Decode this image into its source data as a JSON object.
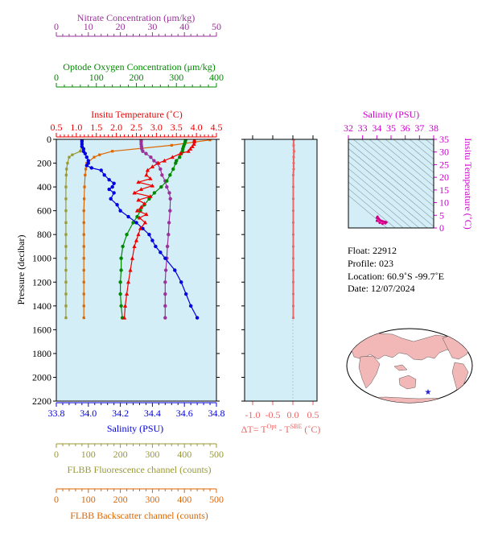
{
  "colors": {
    "plot_bg": "#d4eef7",
    "salinity": "#0000dd",
    "temperature": "#ee0000",
    "oxygen": "#008800",
    "nitrate": "#993399",
    "fluorescence": "#999933",
    "backscatter": "#dd6600",
    "delta_t": "#ee6666",
    "ts_salinity": "#cc00cc",
    "ts_marker": "#ff33aa",
    "map_land": "#f2b8b8",
    "map_ocean": "#ffffff",
    "map_marker": "#2222cc"
  },
  "info": {
    "float": "Float:  22912",
    "profile": "Profile:  023",
    "location": "Location:  60.9˚S  -99.7˚E",
    "date": "Date:  12/07/2024"
  },
  "chart_data": [
    {
      "type": "line",
      "panel": "main profile",
      "ylabel": "Pressure (decibar)",
      "yaxis_inverted": true,
      "ylim": [
        0,
        2200
      ],
      "ytick_labels": [
        "0",
        "200",
        "400",
        "600",
        "800",
        "1000",
        "1200",
        "1400",
        "1600",
        "1800",
        "2000",
        "2200"
      ],
      "axes": {
        "nitrate": {
          "label": "Nitrate Concentration (μm/kg)",
          "lim": [
            0,
            50
          ],
          "tick_labels": [
            "0",
            "10",
            "20",
            "30",
            "40",
            "50"
          ]
        },
        "oxygen": {
          "label": "Optode Oxygen Concentration (μm/kg)",
          "lim": [
            0,
            400
          ],
          "tick_labels": [
            "0",
            "100",
            "200",
            "300",
            "400"
          ]
        },
        "temperature": {
          "label": "Insitu Temperature (˚C)",
          "lim": [
            0.5,
            4.5
          ],
          "tick_labels": [
            "0.5",
            "1.0",
            "1.5",
            "2.0",
            "2.5",
            "3.0",
            "3.5",
            "4.0",
            "4.5"
          ]
        },
        "salinity": {
          "label": "Salinity (PSU)",
          "lim": [
            33.8,
            34.8
          ],
          "tick_labels": [
            "33.8",
            "34.0",
            "34.2",
            "34.4",
            "34.6",
            "34.8"
          ]
        },
        "fluorescence": {
          "label": "FLBB Fluorescence channel (counts)",
          "lim": [
            0,
            500
          ],
          "tick_labels": [
            "0",
            "100",
            "200",
            "300",
            "400",
            "500"
          ]
        },
        "backscatter": {
          "label": "FLBB Backscatter channel (counts)",
          "lim": [
            0,
            500
          ],
          "tick_labels": [
            "0",
            "100",
            "200",
            "300",
            "400",
            "500"
          ]
        }
      },
      "series": [
        {
          "key": "salinity",
          "pressure": [
            5,
            20,
            40,
            60,
            80,
            100,
            120,
            150,
            180,
            200,
            220,
            240,
            260,
            300,
            340,
            370,
            400,
            420,
            450,
            500,
            550,
            600,
            650,
            700,
            750,
            800,
            850,
            900,
            950,
            1000,
            1100,
            1200,
            1300,
            1400,
            1500
          ],
          "values": [
            33.96,
            33.96,
            33.96,
            33.96,
            33.97,
            33.97,
            33.98,
            33.99,
            34.0,
            34.0,
            33.99,
            34.02,
            34.08,
            34.1,
            34.13,
            34.16,
            34.15,
            34.13,
            34.16,
            34.14,
            34.18,
            34.2,
            34.25,
            34.3,
            34.34,
            34.38,
            34.4,
            34.42,
            34.45,
            34.48,
            34.54,
            34.58,
            34.61,
            34.64,
            34.68
          ]
        },
        {
          "key": "temperature",
          "pressure": [
            5,
            20,
            40,
            60,
            80,
            100,
            120,
            150,
            180,
            200,
            230,
            260,
            300,
            330,
            360,
            390,
            420,
            450,
            480,
            510,
            540,
            570,
            600,
            630,
            660,
            700,
            750,
            800,
            850,
            900,
            1000,
            1100,
            1200,
            1300,
            1400,
            1500
          ],
          "values": [
            3.95,
            3.95,
            3.94,
            3.9,
            3.85,
            3.8,
            3.6,
            3.4,
            3.2,
            3.05,
            2.9,
            2.78,
            2.75,
            2.85,
            2.55,
            2.9,
            2.62,
            2.45,
            2.85,
            2.55,
            2.7,
            2.62,
            2.52,
            2.75,
            2.58,
            2.72,
            2.6,
            2.55,
            2.5,
            2.45,
            2.4,
            2.35,
            2.3,
            2.26,
            2.22,
            2.2
          ]
        },
        {
          "key": "oxygen",
          "pressure": [
            5,
            20,
            40,
            60,
            80,
            100,
            120,
            150,
            180,
            200,
            250,
            300,
            350,
            400,
            450,
            500,
            550,
            600,
            650,
            700,
            800,
            900,
            1000,
            1100,
            1200,
            1300,
            1400,
            1500
          ],
          "values": [
            323,
            322,
            320,
            318,
            316,
            315,
            312,
            308,
            300,
            298,
            292,
            284,
            276,
            262,
            245,
            232,
            220,
            210,
            202,
            192,
            176,
            166,
            162,
            162,
            160,
            160,
            162,
            165
          ]
        },
        {
          "key": "nitrate",
          "pressure": [
            5,
            20,
            40,
            60,
            80,
            100,
            120,
            150,
            180,
            200,
            250,
            300,
            350,
            400,
            450,
            500,
            600,
            700,
            800,
            900,
            1000,
            1100,
            1200,
            1300,
            1400,
            1500
          ],
          "values": [
            26.5,
            26.5,
            26.5,
            26.6,
            26.7,
            27,
            28,
            29.5,
            30.5,
            31.5,
            32.5,
            33,
            34,
            34.5,
            35.3,
            35.6,
            35.5,
            35.2,
            35,
            34.7,
            34.5,
            34.2,
            34,
            34,
            34,
            34
          ]
        },
        {
          "key": "fluorescence",
          "pressure": [
            5,
            50,
            100,
            130,
            150,
            200,
            250,
            300,
            400,
            500,
            600,
            700,
            800,
            900,
            1000,
            1100,
            1200,
            1300,
            1400,
            1500
          ],
          "values": [
            80,
            80,
            75,
            50,
            40,
            35,
            32,
            31,
            30,
            30,
            30,
            30,
            30,
            30,
            30,
            30,
            30,
            30,
            30,
            30
          ]
        },
        {
          "key": "backscatter",
          "pressure": [
            5,
            50,
            100,
            130,
            150,
            200,
            250,
            300,
            400,
            500,
            600,
            700,
            800,
            900,
            1000,
            1100,
            1200,
            1300,
            1400,
            1500
          ],
          "values": [
            480,
            360,
            175,
            135,
            118,
            95,
            92,
            90,
            88,
            87,
            86,
            86,
            86,
            86,
            86,
            86,
            86,
            86,
            86,
            86
          ]
        }
      ]
    },
    {
      "type": "line",
      "panel": "temperature difference",
      "xlabel": "ΔT= T",
      "xlabel_sup1": "Opt",
      "xlabel_mid": " - T",
      "xlabel_sup2": "SBE",
      "xlabel_end": " (˚C)",
      "xlim": [
        -1.2,
        0.6
      ],
      "xtick_labels": [
        "-1.0",
        "-0.5",
        "0.0",
        "0.5"
      ],
      "xtick_values": [
        -1.0,
        -0.5,
        0.0,
        0.5
      ],
      "ylim": [
        0,
        2200
      ],
      "series": [
        {
          "key": "delta_t",
          "pressure": [
            5,
            50,
            100,
            150,
            200,
            250,
            300,
            400,
            500,
            600,
            700,
            800,
            900,
            1000,
            1100,
            1200,
            1300,
            1400,
            1500
          ],
          "values": [
            0.02,
            0.02,
            0.03,
            0.02,
            0.02,
            0.02,
            0.01,
            0.01,
            0.01,
            0.01,
            0.01,
            0.01,
            0.01,
            0.01,
            0.01,
            0.01,
            0.01,
            0.01,
            0.01
          ]
        }
      ]
    },
    {
      "type": "scatter",
      "panel": "T-S diagram",
      "xlabel": "Salinity (PSU)",
      "ylabel": "Insitu Temperature (˚C)",
      "xlim": [
        32,
        38
      ],
      "ylim": [
        0,
        35
      ],
      "xtick_labels": [
        "32",
        "33",
        "34",
        "35",
        "36",
        "37",
        "38"
      ],
      "ytick_labels": [
        "0",
        "5",
        "10",
        "15",
        "20",
        "25",
        "30",
        "35"
      ],
      "points": {
        "salinity": [
          34.0,
          34.05,
          34.1,
          34.15,
          34.2,
          34.3,
          34.4,
          34.5,
          34.6,
          34.68,
          34.6,
          34.4,
          34.2,
          34.0
        ],
        "temperature": [
          4.0,
          4.5,
          3.9,
          3.6,
          3.2,
          2.9,
          2.7,
          2.5,
          2.4,
          2.2,
          1.8,
          1.6,
          2.0,
          2.8
        ]
      }
    },
    {
      "type": "map",
      "panel": "location map",
      "marker": {
        "lat": -60.9,
        "lon": -99.7
      }
    }
  ]
}
